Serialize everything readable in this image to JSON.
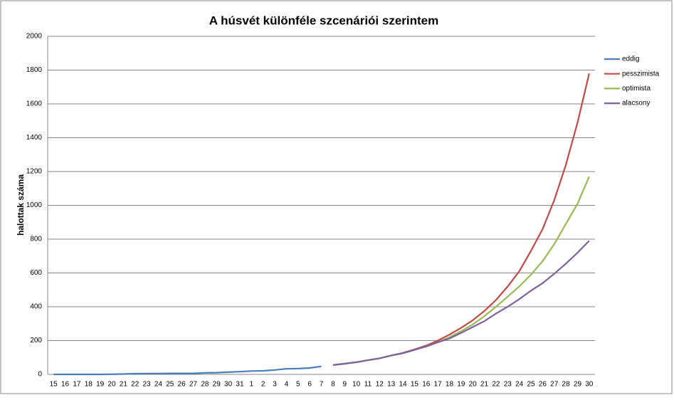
{
  "chart_data": {
    "type": "line",
    "title": "A húsvét különféle szcenáriói szerintem",
    "y_label": "halottak száma",
    "categories": [
      "15",
      "16",
      "17",
      "18",
      "19",
      "20",
      "21",
      "22",
      "23",
      "24",
      "25",
      "26",
      "27",
      "28",
      "29",
      "30",
      "31",
      "1",
      "2",
      "3",
      "4",
      "5",
      "6",
      "7",
      "8",
      "9",
      "10",
      "11",
      "12",
      "13",
      "14",
      "15",
      "16",
      "17",
      "18",
      "19",
      "20",
      "21",
      "22",
      "23",
      "24",
      "25",
      "26",
      "27",
      "28",
      "29",
      "30"
    ],
    "series": [
      {
        "name": "eddig",
        "color": "#4a7ebb",
        "values": [
          0,
          0,
          0,
          0,
          0,
          1,
          2,
          4,
          5,
          5,
          6,
          6,
          6,
          9,
          10,
          13,
          16,
          20,
          21,
          26,
          33,
          34,
          38,
          47,
          null,
          null,
          null,
          null,
          null,
          null,
          null,
          null,
          null,
          null,
          null,
          null,
          null,
          null,
          null,
          null,
          null,
          null,
          null,
          null,
          null,
          null,
          null
        ]
      },
      {
        "name": "pesszimista",
        "color": "#be4b48",
        "values": [
          null,
          null,
          null,
          null,
          null,
          null,
          null,
          null,
          null,
          null,
          null,
          null,
          null,
          null,
          null,
          null,
          null,
          null,
          null,
          null,
          null,
          null,
          null,
          null,
          55,
          63,
          72,
          84,
          95,
          112,
          127,
          148,
          170,
          200,
          235,
          275,
          320,
          375,
          440,
          520,
          610,
          730,
          860,
          1030,
          1240,
          1490,
          1780
        ]
      },
      {
        "name": "optimista",
        "color": "#98b954",
        "values": [
          null,
          null,
          null,
          null,
          null,
          null,
          null,
          null,
          null,
          null,
          null,
          null,
          null,
          null,
          null,
          null,
          null,
          null,
          null,
          null,
          null,
          null,
          null,
          null,
          55,
          63,
          72,
          84,
          95,
          112,
          125,
          145,
          165,
          190,
          220,
          255,
          295,
          345,
          400,
          460,
          520,
          590,
          670,
          770,
          890,
          1010,
          1170
        ]
      },
      {
        "name": "alacsony",
        "color": "#7d60a0",
        "values": [
          null,
          null,
          null,
          null,
          null,
          null,
          null,
          null,
          null,
          null,
          null,
          null,
          null,
          null,
          null,
          null,
          null,
          null,
          null,
          null,
          null,
          null,
          null,
          null,
          55,
          63,
          72,
          84,
          95,
          112,
          125,
          145,
          165,
          190,
          212,
          245,
          280,
          315,
          360,
          400,
          445,
          495,
          540,
          595,
          655,
          720,
          790
        ]
      }
    ],
    "ylim": [
      0,
      2000
    ],
    "yticks": [
      0,
      200,
      400,
      600,
      800,
      1000,
      1200,
      1400,
      1600,
      1800,
      2000
    ],
    "grid": true
  }
}
